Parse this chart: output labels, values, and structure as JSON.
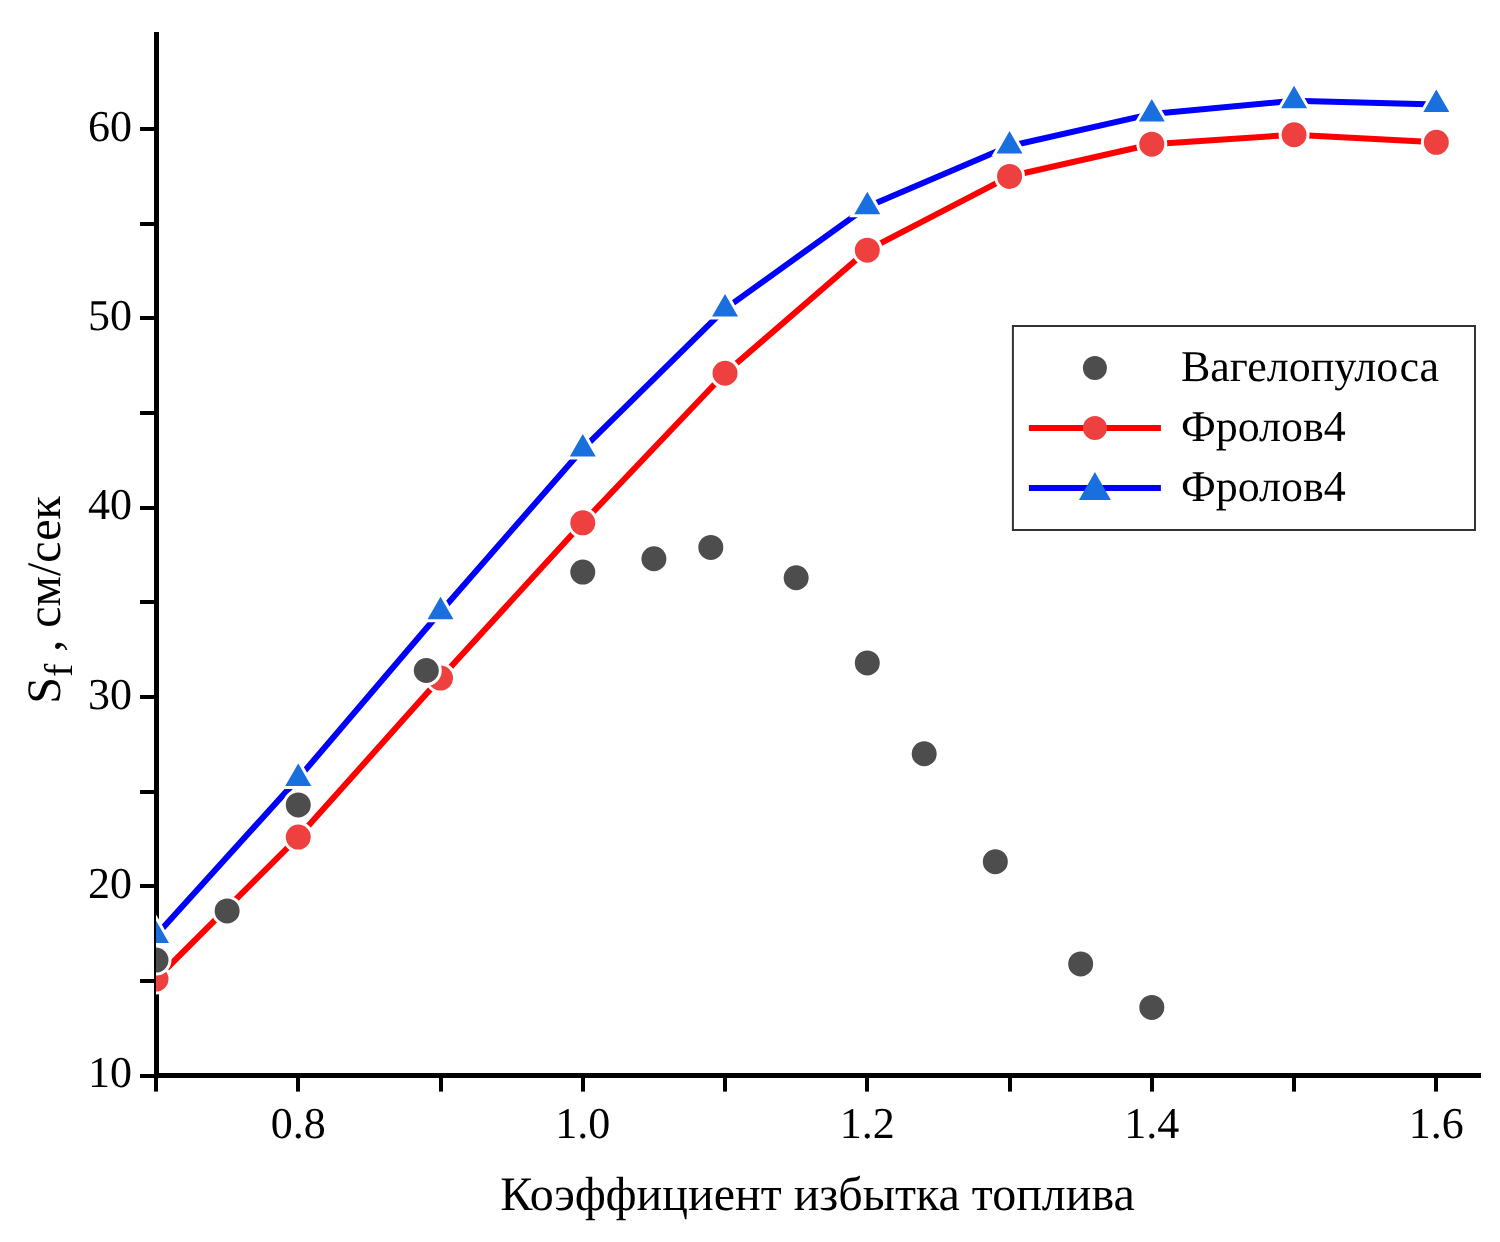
{
  "chart_data": {
    "type": "line",
    "xlabel": "Коэффициент избытка топлива",
    "ylabel": "S$_{f}$ , см/сек",
    "xlim": [
      0.7,
      1.63
    ],
    "ylim": [
      10,
      65
    ],
    "xticks": [
      {
        "value": 0.7,
        "label": null
      },
      {
        "value": 0.8,
        "label": "0.8"
      },
      {
        "value": 0.9,
        "label": null
      },
      {
        "value": 1.0,
        "label": "1.0"
      },
      {
        "value": 1.1,
        "label": null
      },
      {
        "value": 1.2,
        "label": "1.2"
      },
      {
        "value": 1.3,
        "label": null
      },
      {
        "value": 1.4,
        "label": "1.4"
      },
      {
        "value": 1.5,
        "label": null
      },
      {
        "value": 1.6,
        "label": "1.6"
      }
    ],
    "yticks": [
      10,
      {
        "value": 15,
        "label": null
      },
      20,
      {
        "value": 25,
        "label": null
      },
      30,
      {
        "value": 35,
        "label": null
      },
      40,
      {
        "value": 45,
        "label": null
      },
      50,
      {
        "value": 55,
        "label": null
      },
      60
    ],
    "grid": false,
    "legend": "right",
    "series": [
      {
        "name": "Вагелопулоса",
        "type": "scatter",
        "marker": "circle",
        "color": "#4d4d4d",
        "x": [
          0.7,
          0.75,
          0.8,
          0.89,
          1.0,
          1.05,
          1.09,
          1.15,
          1.2,
          1.24,
          1.29,
          1.35,
          1.4
        ],
        "values": [
          16.1,
          18.7,
          24.3,
          31.4,
          36.6,
          37.3,
          37.9,
          36.3,
          31.8,
          27.0,
          21.3,
          15.9,
          13.6
        ]
      },
      {
        "name": "Фролов4",
        "type": "line",
        "marker": "circle",
        "line_style": "solid",
        "color": "#ff0000",
        "x": [
          0.7,
          0.8,
          0.9,
          1.0,
          1.1,
          1.2,
          1.3,
          1.4,
          1.5,
          1.6
        ],
        "values": [
          15.1,
          22.6,
          31.0,
          39.2,
          47.1,
          53.6,
          57.5,
          59.2,
          59.7,
          59.3
        ]
      },
      {
        "name": "Фролов4",
        "type": "line",
        "marker": "triangle",
        "line_style": "solid",
        "color": "#0000ff",
        "x": [
          0.7,
          0.8,
          0.9,
          1.0,
          1.1,
          1.2,
          1.3,
          1.4,
          1.5,
          1.6
        ],
        "values": [
          17.4,
          25.7,
          34.5,
          43.1,
          50.5,
          55.9,
          59.1,
          60.8,
          61.5,
          61.3
        ]
      }
    ]
  }
}
